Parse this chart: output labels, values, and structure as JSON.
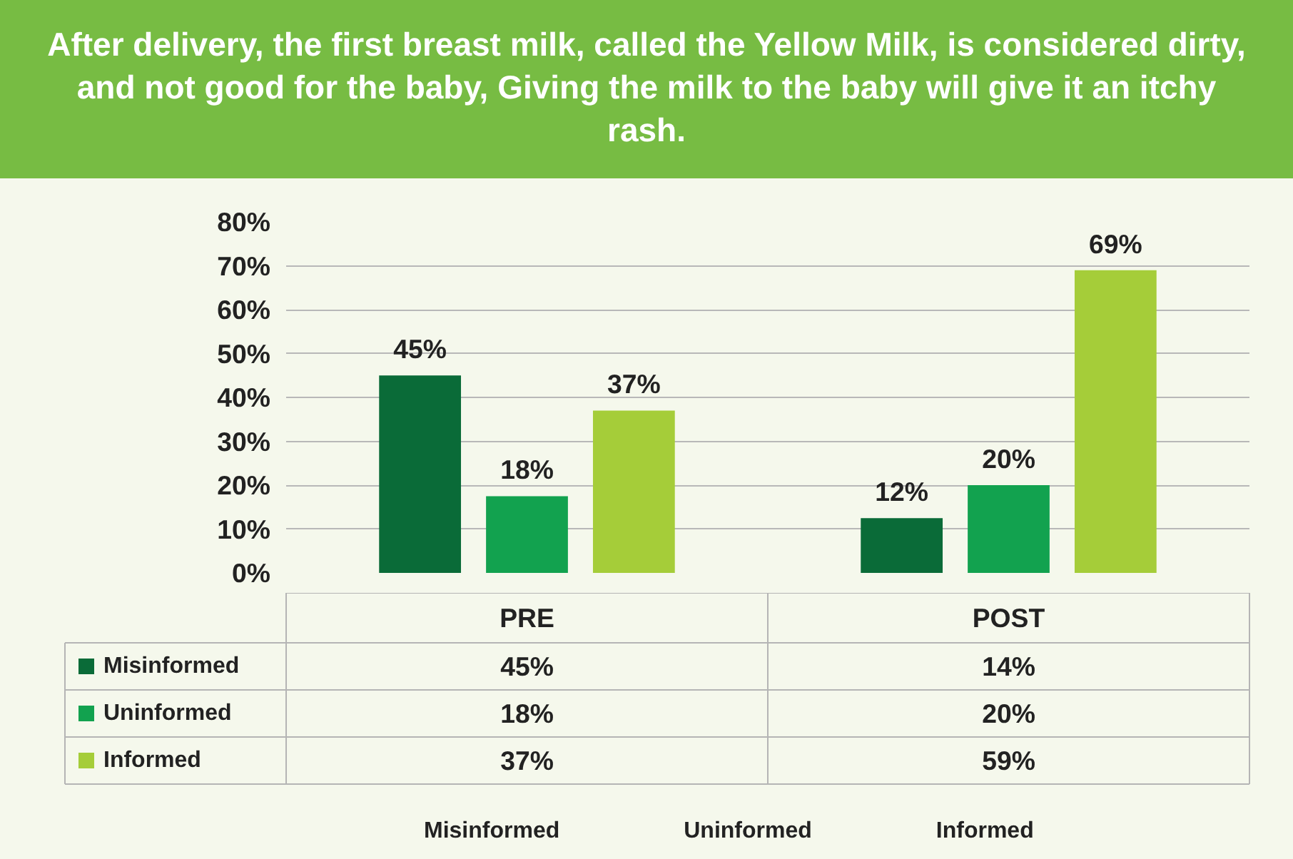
{
  "chart_data": {
    "type": "bar",
    "title": "After delivery, the first breast milk, called the Yellow Milk, is considered dirty, and not good for the baby, Giving the milk to the baby  will give it an itchy rash.",
    "categories": [
      "PRE",
      "POST"
    ],
    "series": [
      {
        "name": "Misinformed",
        "color": "#0a6b38",
        "values": [
          45,
          12.5
        ],
        "value_labels": [
          "45%",
          "12%"
        ]
      },
      {
        "name": "Uninformed",
        "color": "#12a24f",
        "values": [
          17.5,
          20
        ],
        "value_labels": [
          "18%",
          "20%"
        ]
      },
      {
        "name": "Informed",
        "color": "#a5cd39",
        "values": [
          37,
          69
        ],
        "value_labels": [
          "37%",
          "69%"
        ]
      }
    ],
    "ylim": [
      0,
      80
    ],
    "yticks": [
      {
        "value": 0,
        "label": "0%"
      },
      {
        "value": 10,
        "label": "10%"
      },
      {
        "value": 20,
        "label": "20%"
      },
      {
        "value": 30,
        "label": "30%"
      },
      {
        "value": 40,
        "label": "40%"
      },
      {
        "value": 50,
        "label": "50%"
      },
      {
        "value": 60,
        "label": "60%"
      },
      {
        "value": 70,
        "label": "70%"
      },
      {
        "value": 80,
        "label": "80%"
      }
    ],
    "grid": "y",
    "legend": "bottom",
    "annotations": [
      "45%",
      "14%",
      "18%",
      "20%",
      "37%",
      "59%"
    ]
  }
}
